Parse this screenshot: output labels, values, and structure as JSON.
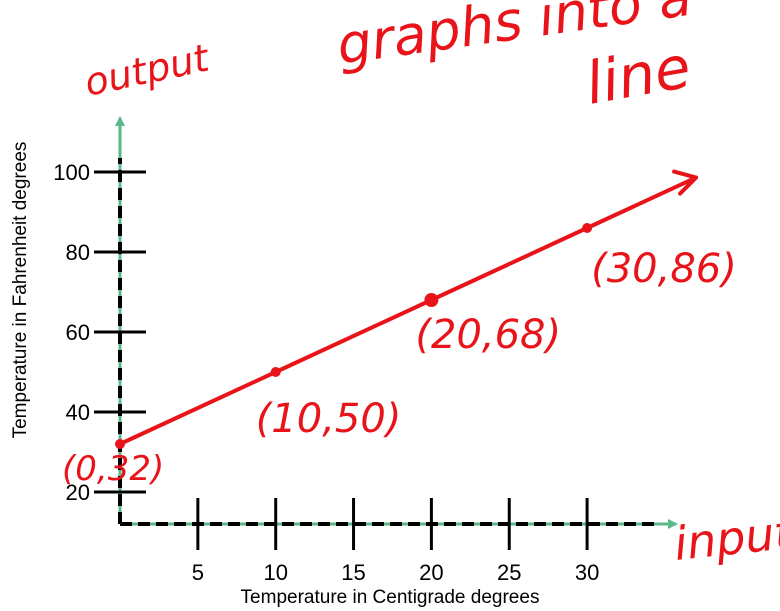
{
  "chart_data": {
    "type": "line",
    "title": "",
    "xlabel": "Temperature in Centigrade degrees",
    "ylabel": "Temperature in Fahrenheit degrees",
    "x_ticks": [
      5,
      10,
      15,
      20,
      25,
      30
    ],
    "y_ticks": [
      20,
      40,
      60,
      80,
      100
    ],
    "xlim": [
      0,
      35
    ],
    "ylim": [
      12,
      104
    ],
    "grid": false,
    "series": [
      {
        "values": [
          [
            0,
            32
          ],
          [
            10,
            50
          ],
          [
            20,
            68
          ],
          [
            30,
            86
          ]
        ]
      }
    ],
    "annotations": {
      "output": "output",
      "input": "input",
      "note_line1": "graphs into a",
      "note_line2": "line",
      "points": [
        "(0,32)",
        "(10,50)",
        "(20,68)",
        "(30,86)"
      ]
    },
    "colors": {
      "axis": "#5bb88a",
      "ink": "#e8141a",
      "dash": "#000000"
    }
  }
}
